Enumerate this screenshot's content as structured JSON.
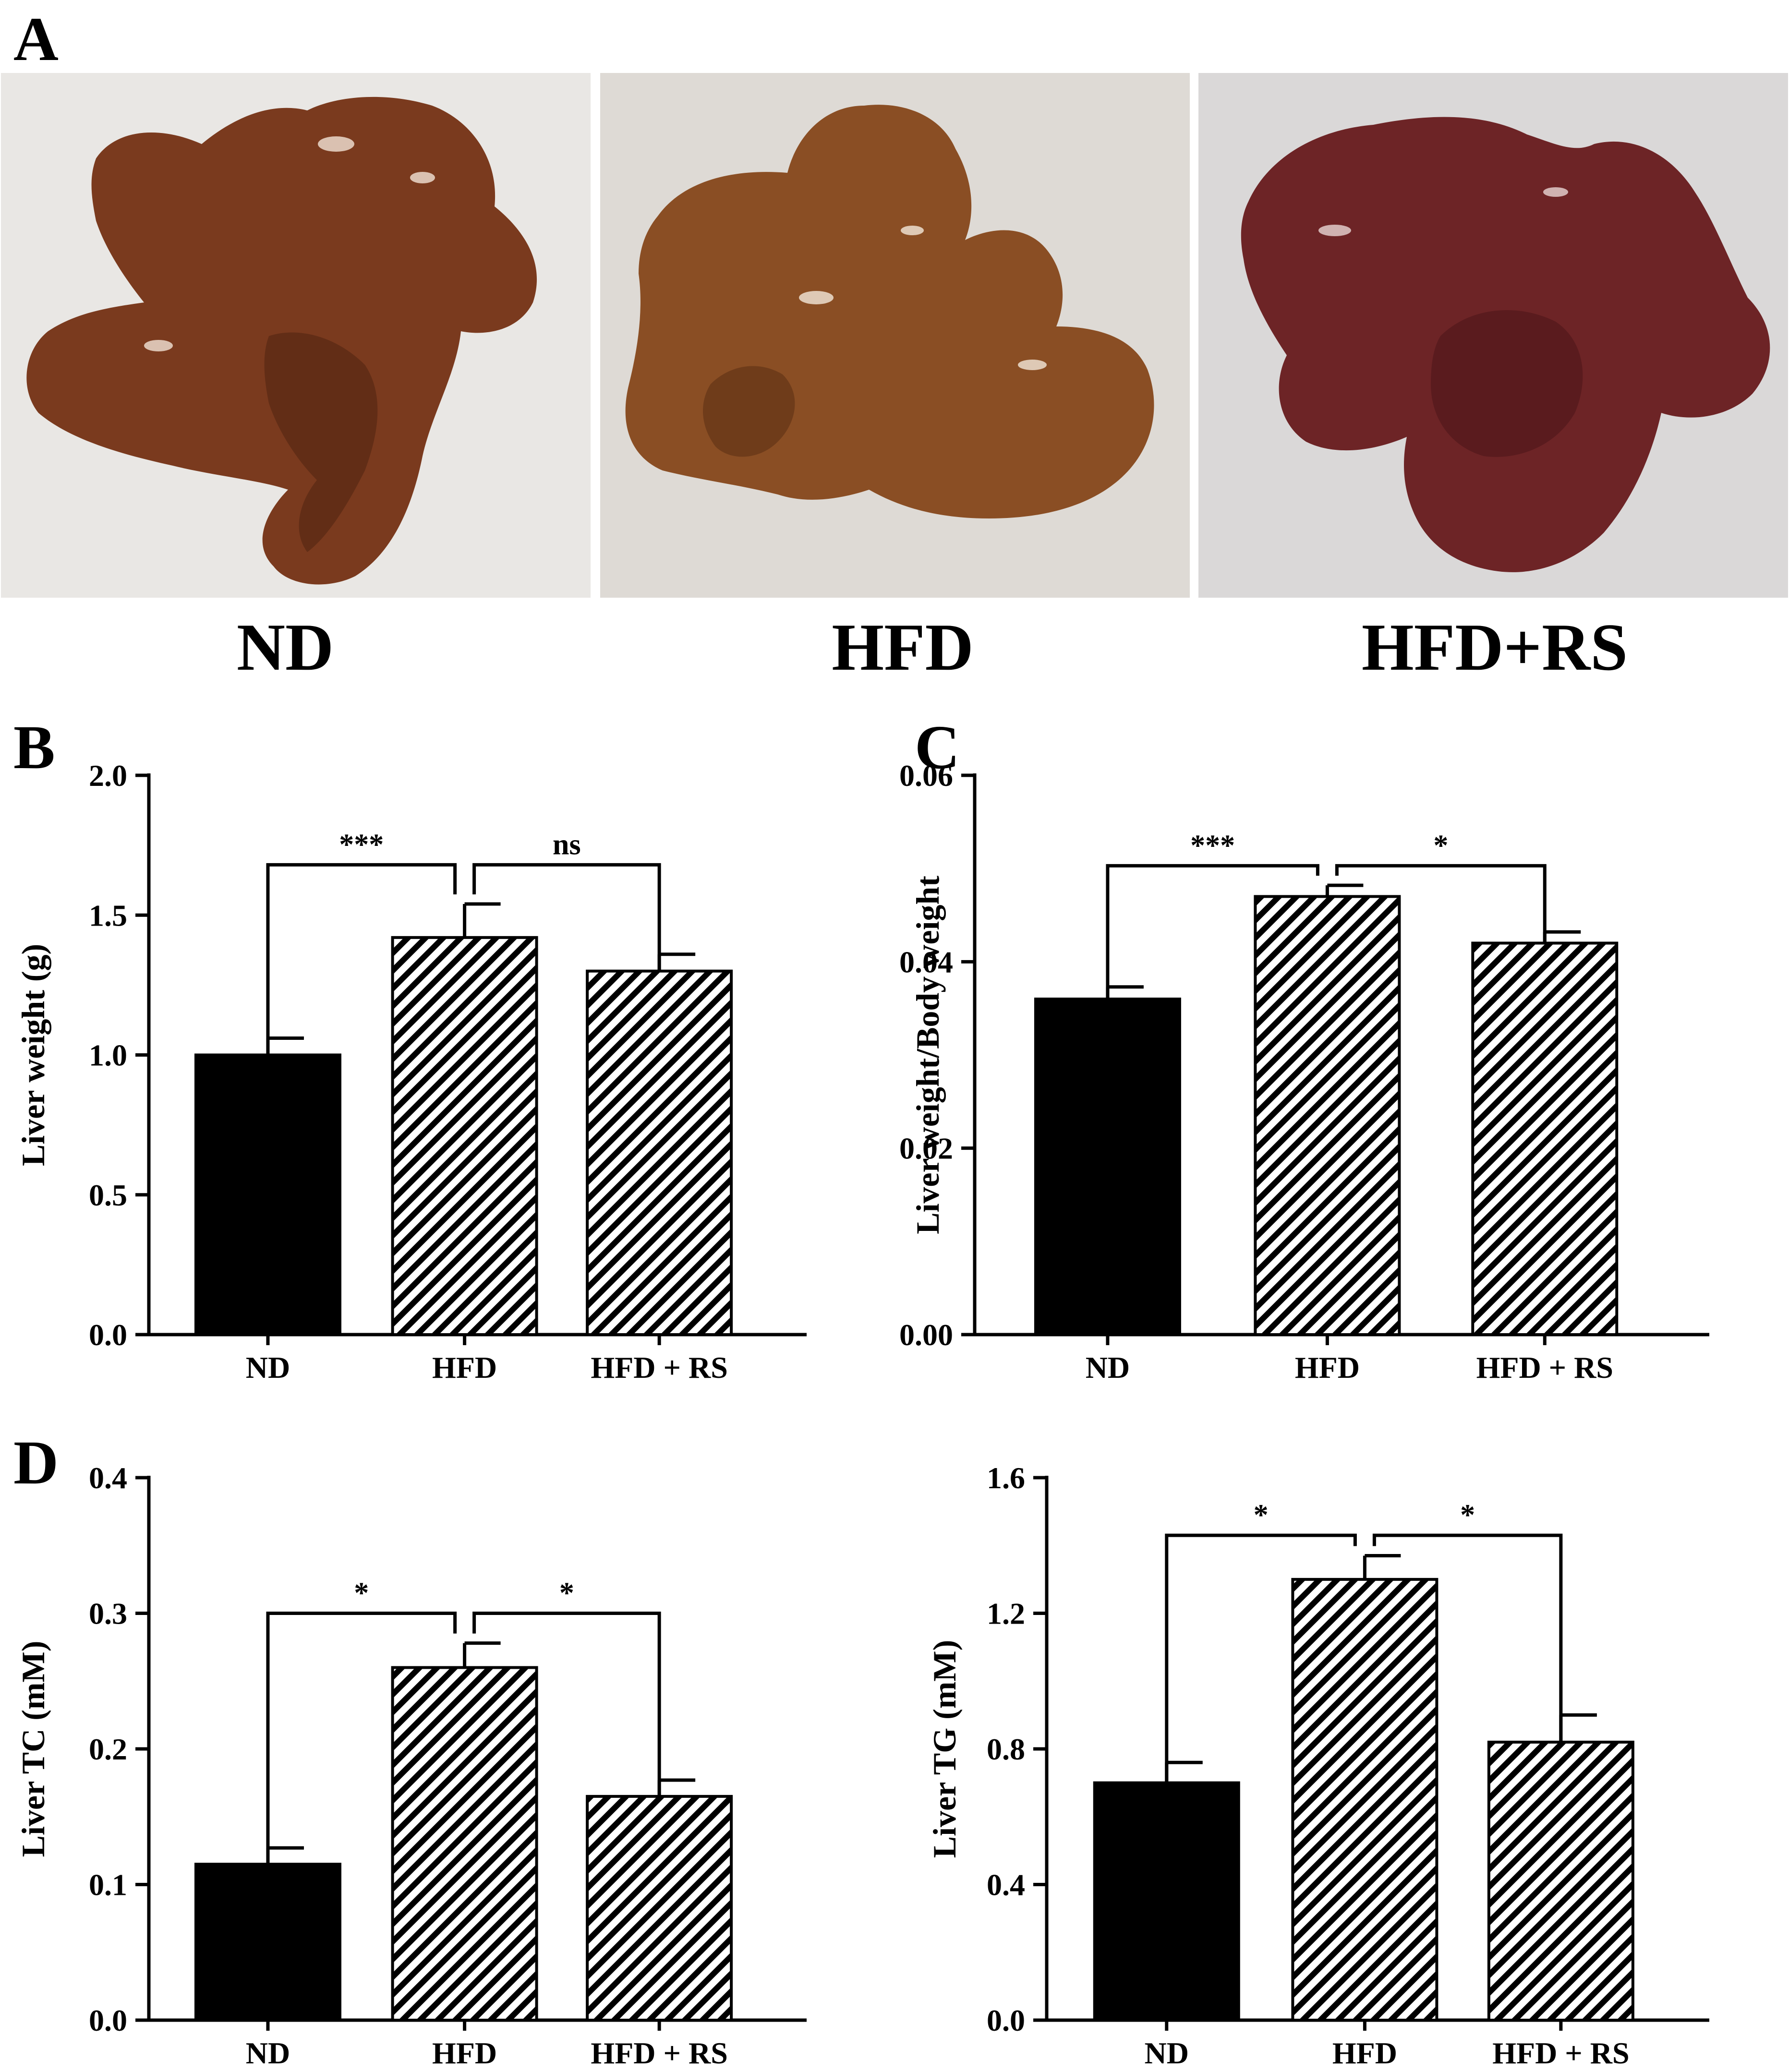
{
  "panels": {
    "A": "A",
    "B": "B",
    "C": "C",
    "D": "D"
  },
  "photos": [
    {
      "label": "ND",
      "colors": {
        "bg": "#e9e7e4",
        "organ": "#7a3a1e",
        "shade": "#4f2210",
        "shine": "#f2e4d6"
      }
    },
    {
      "label": "HFD",
      "colors": {
        "bg": "#dedad5",
        "organ": "#8a4e24",
        "shade": "#5a2e12",
        "shine": "#f3e8da"
      }
    },
    {
      "label": "HFD+RS",
      "colors": {
        "bg": "#dad8d8",
        "organ": "#6d2426",
        "shade": "#4a1417",
        "shine": "#e9d6d4"
      }
    }
  ],
  "colors": {
    "bar_solid": "#000000",
    "hatch_fg": "#000000",
    "hatch_bg": "#ffffff",
    "axis": "#000000"
  },
  "chart_data": [
    {
      "panel": "B",
      "type": "bar",
      "categories": [
        "ND",
        "HFD",
        "HFD +  RS"
      ],
      "values": [
        1.0,
        1.42,
        1.3
      ],
      "errors": [
        0.06,
        0.12,
        0.06
      ],
      "fills": [
        "solid",
        "hatched",
        "hatched"
      ],
      "ylabel": "Liver weight (g)",
      "ylim": [
        0,
        2.0
      ],
      "yticks": [
        "0.0",
        "0.5",
        "1.0",
        "1.5",
        "2.0"
      ],
      "comparisons": [
        {
          "from": 0,
          "to": 1,
          "label": "***",
          "level": 1.68
        },
        {
          "from": 1,
          "to": 2,
          "label": "ns",
          "level": 1.68
        }
      ]
    },
    {
      "panel": "C",
      "type": "bar",
      "categories": [
        "ND",
        "HFD",
        "HFD +  RS"
      ],
      "values": [
        0.036,
        0.047,
        0.042
      ],
      "errors": [
        0.0013,
        0.0012,
        0.0012
      ],
      "fills": [
        "solid",
        "hatched",
        "hatched"
      ],
      "ylabel": "Liver weight/Body weight",
      "ylim": [
        0,
        0.06
      ],
      "yticks": [
        "0.00",
        "0.02",
        "0.04",
        "0.06"
      ],
      "comparisons": [
        {
          "from": 0,
          "to": 1,
          "label": "***",
          "level": 0.0503
        },
        {
          "from": 1,
          "to": 2,
          "label": "*",
          "level": 0.0503
        }
      ]
    },
    {
      "panel": "D",
      "type": "bar",
      "categories": [
        "ND",
        "HFD",
        "HFD +  RS"
      ],
      "values": [
        0.115,
        0.26,
        0.165
      ],
      "errors": [
        0.012,
        0.018,
        0.012
      ],
      "fills": [
        "solid",
        "hatched",
        "hatched"
      ],
      "ylabel": "Liver TC (mM)",
      "ylim": [
        0,
        0.4
      ],
      "yticks": [
        "0.0",
        "0.1",
        "0.2",
        "0.3",
        "0.4"
      ],
      "comparisons": [
        {
          "from": 0,
          "to": 1,
          "label": "*",
          "level": 0.3
        },
        {
          "from": 1,
          "to": 2,
          "label": "*",
          "level": 0.3
        }
      ]
    },
    {
      "panel": "",
      "type": "bar",
      "categories": [
        "ND",
        "HFD",
        "HFD +  RS"
      ],
      "values": [
        0.7,
        1.3,
        0.82
      ],
      "errors": [
        0.06,
        0.07,
        0.08
      ],
      "fills": [
        "solid",
        "hatched",
        "hatched"
      ],
      "ylabel": "Liver TG (mM)",
      "ylim": [
        0,
        1.6
      ],
      "yticks": [
        "0.0",
        "0.4",
        "0.8",
        "1.2",
        "1.6"
      ],
      "comparisons": [
        {
          "from": 0,
          "to": 1,
          "label": "*",
          "level": 1.43
        },
        {
          "from": 1,
          "to": 2,
          "label": "*",
          "level": 1.43
        }
      ]
    }
  ]
}
